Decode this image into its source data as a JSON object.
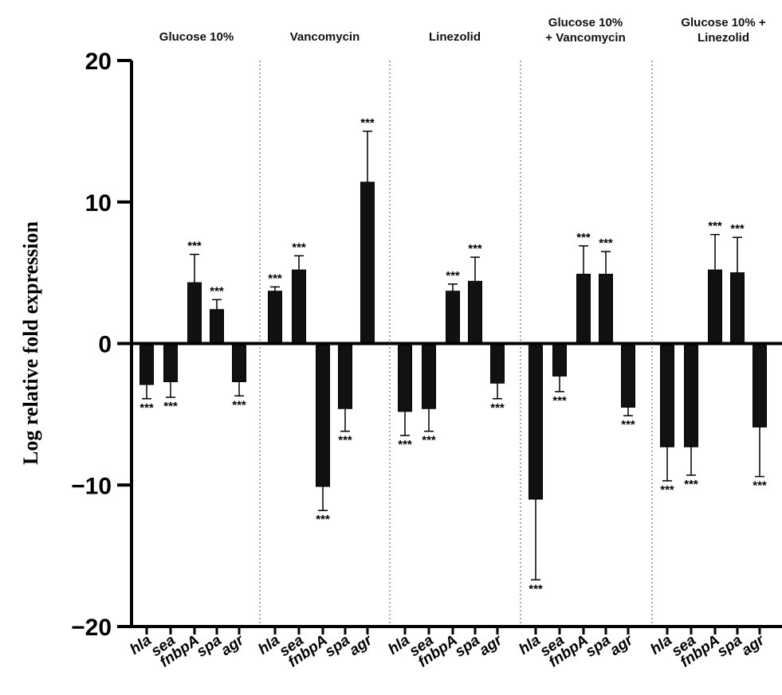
{
  "chart_data": {
    "type": "bar",
    "title": "",
    "ylabel": "Log relative fold expression",
    "xlabel": "",
    "ylim": [
      -20,
      20
    ],
    "yticks": [
      -20,
      -10,
      0,
      10,
      20
    ],
    "ytick_labels": [
      "−20",
      "−10",
      "0",
      "10",
      "20"
    ],
    "grid": false,
    "bar_color": "#111111",
    "significance_label": "***",
    "panels": [
      {
        "title_lines": [
          "Glucose 10%"
        ],
        "genes": [
          "hla",
          "sea",
          "fnbpA",
          "spa",
          "agr"
        ],
        "values": [
          -2.9,
          -2.7,
          4.3,
          2.4,
          -2.7
        ],
        "errors": [
          1.0,
          1.1,
          2.0,
          0.7,
          1.0
        ],
        "significance": [
          "***",
          "***",
          "***",
          "***",
          "***"
        ]
      },
      {
        "title_lines": [
          "Vancomycin"
        ],
        "genes": [
          "hla",
          "sea",
          "fnbpA",
          "spa",
          "agr"
        ],
        "values": [
          3.7,
          5.2,
          -10.1,
          -4.6,
          11.4
        ],
        "errors": [
          0.3,
          1.0,
          1.7,
          1.6,
          3.6
        ],
        "significance": [
          "***",
          "***",
          "***",
          "***",
          "***"
        ]
      },
      {
        "title_lines": [
          "Linezolid"
        ],
        "genes": [
          "hla",
          "sea",
          "fnbpA",
          "spa",
          "agr"
        ],
        "values": [
          -4.8,
          -4.6,
          3.7,
          4.4,
          -2.8
        ],
        "errors": [
          1.7,
          1.6,
          0.5,
          1.7,
          1.1
        ],
        "significance": [
          "***",
          "***",
          "***",
          "***",
          "***"
        ]
      },
      {
        "title_lines": [
          "Glucose 10%",
          "+ Vancomycin"
        ],
        "genes": [
          "hla",
          "sea",
          "fnbpA",
          "spa",
          "agr"
        ],
        "values": [
          -11.0,
          -2.3,
          4.9,
          4.9,
          -4.5
        ],
        "errors": [
          5.7,
          1.1,
          2.0,
          1.6,
          0.6
        ],
        "significance": [
          "***",
          "***",
          "***",
          "***",
          "***"
        ]
      },
      {
        "title_lines": [
          "Glucose 10% +",
          "Linezolid"
        ],
        "genes": [
          "hla",
          "sea",
          "fnbpA",
          "spa",
          "agr"
        ],
        "values": [
          -7.3,
          -7.3,
          5.2,
          5.0,
          -5.9
        ],
        "errors": [
          2.4,
          2.0,
          2.5,
          2.5,
          3.5
        ],
        "significance": [
          "***",
          "***",
          "***",
          "***",
          "***"
        ]
      }
    ]
  }
}
